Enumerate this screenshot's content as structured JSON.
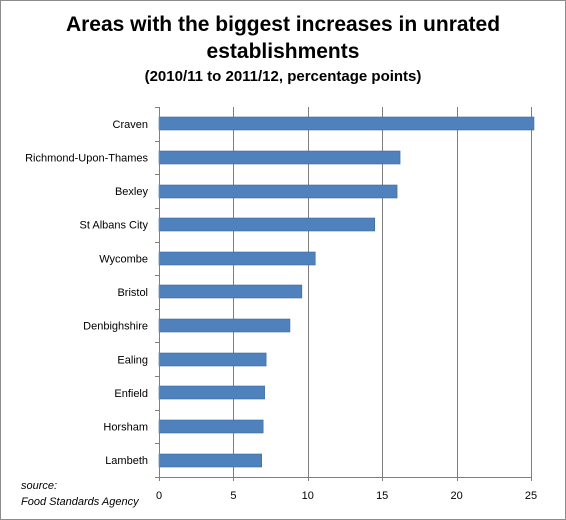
{
  "chart_data": {
    "type": "bar",
    "orientation": "horizontal",
    "title": "Areas with the biggest increases in unrated establishments",
    "subtitle": "(2010/11 to 2011/12, percentage points)",
    "categories": [
      "Craven",
      "Richmond-Upon-Thames",
      "Bexley",
      "St Albans City",
      "Wycombe",
      "Bristol",
      "Denbighshire",
      "Ealing",
      "Enfield",
      "Horsham",
      "Lambeth"
    ],
    "values": [
      25.2,
      16.2,
      16.0,
      14.5,
      10.5,
      9.6,
      8.8,
      7.2,
      7.1,
      7.0,
      6.9
    ],
    "xlim": [
      0,
      25
    ],
    "xticks": [
      0,
      5,
      10,
      15,
      20,
      25
    ],
    "xlabel": "",
    "ylabel": "",
    "grid": true,
    "bar_color": "#4f81bd"
  },
  "source_label": "source:",
  "source_name": "Food Standards Agency"
}
